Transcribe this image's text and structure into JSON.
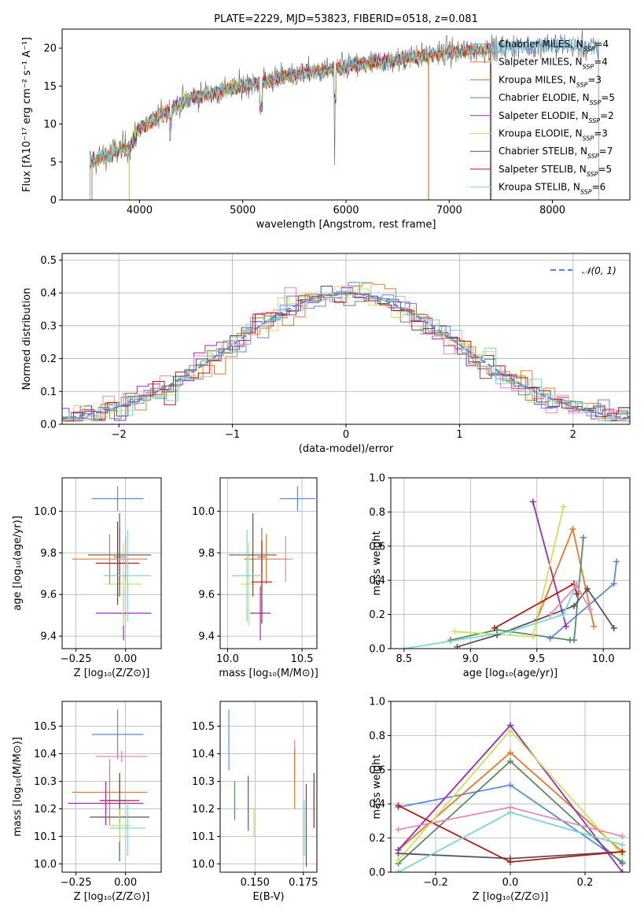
{
  "colors": {
    "chabrier_miles": "#5b8bd6",
    "salpeter_miles": "#e07b2a",
    "kroupa_miles": "#b8781e",
    "chabrier_elodie": "#5d8a66",
    "salpeter_elodie": "#9b2ab8",
    "kroupa_elodie": "#cbe35a",
    "chabrier_stelib": "#555555",
    "salpeter_stelib": "#b31a1a",
    "kroupa_stelib": "#7ed4d8",
    "pink": "#e58bb0",
    "normal": "#5b8bd6"
  },
  "chart_data": [
    {
      "type": "line",
      "title": "PLATE=2229, MJD=53823, FIBERID=0518, z=0.081",
      "xlabel": "wavelength [Angstrom, rest frame]",
      "ylabel": "Flux [fλ10⁻¹⁷ erg cm⁻² s⁻¹ A⁻¹]",
      "xlim": [
        3250,
        8750
      ],
      "ylim": [
        0,
        22.5
      ],
      "xticks": [
        "4000",
        "5000",
        "6000",
        "7000",
        "8000"
      ],
      "yticks": [
        "0",
        "5",
        "10",
        "15",
        "20"
      ],
      "legend": [
        "Chabrier MILES, N_SSP=4",
        "Salpeter MILES, N_SSP=4",
        "Kroupa MILES, N_SSP=3",
        "Chabrier ELODIE, N_SSP=5",
        "Salpeter ELODIE, N_SSP=2",
        "Kroupa ELODIE, N_SSP=3",
        "Chabrier STELIB, N_SSP=7",
        "Salpeter STELIB, N_SSP=5",
        "Kroupa STELIB, N_SSP=6"
      ],
      "legend_position": "right",
      "continuum": {
        "x": [
          3500,
          3700,
          3900,
          4000,
          4200,
          4500,
          5000,
          5500,
          6000,
          6500,
          7000,
          7500,
          8000,
          8400
        ],
        "y": [
          5.0,
          6.0,
          7.0,
          9.5,
          11.0,
          13.5,
          15.0,
          16.5,
          17.5,
          18.5,
          19.5,
          20.0,
          20.5,
          20.0
        ]
      }
    },
    {
      "type": "bar",
      "xlabel": "(data-model)/error",
      "ylabel": "Normed distribution",
      "xlim": [
        -2.5,
        2.5
      ],
      "ylim": [
        0,
        0.52
      ],
      "xticks": [
        "−2",
        "−1",
        "0",
        "1",
        "2"
      ],
      "yticks": [
        "0.0",
        "0.1",
        "0.2",
        "0.3",
        "0.4",
        "0.5"
      ],
      "legend": [
        "𝒩(0, 1)"
      ],
      "legend_position": "top-right",
      "reference_curve": {
        "name": "𝒩(0, 1)",
        "mean": 0,
        "sigma": 1
      }
    },
    {
      "type": "scatter",
      "xlabel": "Z [log₁₀(Z/Z⊙)]",
      "ylabel": "age  [log₁₀(age/yr)]",
      "xlim": [
        -0.32,
        0.18
      ],
      "ylim": [
        9.34,
        10.16
      ],
      "xticks": [
        "−0.25",
        "0.00"
      ],
      "yticks": [
        "9.4",
        "9.6",
        "9.8",
        "10.0"
      ],
      "points": [
        {
          "series": "chabrier_miles",
          "x": -0.04,
          "y": 10.06,
          "xerr": 0.13,
          "yerr": 0.06
        },
        {
          "series": "salpeter_miles",
          "x": -0.08,
          "y": 9.77,
          "xerr": 0.19,
          "yerr": 0.12
        },
        {
          "series": "chabrier_elodie",
          "x": -0.03,
          "y": 9.78,
          "xerr": 0.03,
          "yerr": 0.14
        },
        {
          "series": "salpeter_elodie",
          "x": -0.01,
          "y": 9.51,
          "xerr": 0.14,
          "yerr": 0.13
        },
        {
          "series": "kroupa_elodie",
          "x": -0.01,
          "y": 9.65,
          "xerr": 0.09,
          "yerr": 0.2
        },
        {
          "series": "chabrier_stelib",
          "x": -0.03,
          "y": 9.79,
          "xerr": 0.16,
          "yerr": 0.2
        },
        {
          "series": "salpeter_stelib",
          "x": -0.04,
          "y": 9.75,
          "xerr": 0.11,
          "yerr": 0.2
        },
        {
          "series": "kroupa_stelib",
          "x": 0.01,
          "y": 9.69,
          "xerr": 0.12,
          "yerr": 0.22
        },
        {
          "series": "pink",
          "x": 0.0,
          "y": 9.77,
          "xerr": 0.04,
          "yerr": 0.11
        }
      ]
    },
    {
      "type": "scatter",
      "xlabel": "mass [log₁₀(M/M⊙)]",
      "ylabel": "",
      "xlim": [
        9.95,
        10.6
      ],
      "ylim": [
        9.34,
        10.16
      ],
      "xticks": [
        "10.0",
        "10.5"
      ],
      "yticks": [
        "9.4",
        "9.6",
        "9.8",
        "10.0"
      ],
      "points": [
        {
          "series": "chabrier_miles",
          "x": 10.47,
          "y": 10.06,
          "xerr": 0.12,
          "yerr": 0.06
        },
        {
          "series": "salpeter_miles",
          "x": 10.26,
          "y": 9.77,
          "xerr": 0.15,
          "yerr": 0.12
        },
        {
          "series": "pink",
          "x": 10.39,
          "y": 9.77,
          "xerr": 0.05,
          "yerr": 0.11
        },
        {
          "series": "chabrier_elodie",
          "x": 10.23,
          "y": 9.78,
          "xerr": 0.03,
          "yerr": 0.14
        },
        {
          "series": "salpeter_elodie",
          "x": 10.22,
          "y": 9.51,
          "xerr": 0.07,
          "yerr": 0.13
        },
        {
          "series": "kroupa_elodie",
          "x": 10.14,
          "y": 9.65,
          "xerr": 0.05,
          "yerr": 0.2
        },
        {
          "series": "chabrier_stelib",
          "x": 10.17,
          "y": 9.79,
          "xerr": 0.16,
          "yerr": 0.2
        },
        {
          "series": "salpeter_stelib",
          "x": 10.23,
          "y": 9.66,
          "xerr": 0.07,
          "yerr": 0.2
        },
        {
          "series": "kroupa_stelib",
          "x": 10.13,
          "y": 9.69,
          "xerr": 0.1,
          "yerr": 0.22
        }
      ]
    },
    {
      "type": "line",
      "xlabel": "age  [log₁₀(age/yr)]",
      "ylabel": "mass weight",
      "xlim": [
        8.4,
        10.2
      ],
      "ylim": [
        0,
        1.0
      ],
      "xticks": [
        "8.5",
        "9.0",
        "9.5",
        "10.0"
      ],
      "yticks": [
        "0.0",
        "0.2",
        "0.4",
        "0.6",
        "0.8",
        "1.0"
      ],
      "series": [
        {
          "color": "chabrier_miles",
          "x": [
            9.6,
            10.08,
            10.1
          ],
          "y": [
            0.06,
            0.38,
            0.51
          ]
        },
        {
          "color": "salpeter_miles",
          "x": [
            9.5,
            9.77,
            9.93
          ],
          "y": [
            0.17,
            0.7,
            0.13
          ]
        },
        {
          "color": "chabrier_elodie",
          "x": [
            8.85,
            9.2,
            9.75,
            9.78,
            9.85
          ],
          "y": [
            0.05,
            0.11,
            0.05,
            0.05,
            0.65
          ]
        },
        {
          "color": "salpeter_elodie",
          "x": [
            9.47,
            9.72
          ],
          "y": [
            0.86,
            0.13
          ]
        },
        {
          "color": "kroupa_elodie",
          "x": [
            8.88,
            9.47,
            9.7
          ],
          "y": [
            0.1,
            0.07,
            0.83
          ]
        },
        {
          "color": "chabrier_stelib",
          "x": [
            8.9,
            9.2,
            9.78,
            9.88,
            10.08
          ],
          "y": [
            0.01,
            0.08,
            0.25,
            0.35,
            0.12
          ]
        },
        {
          "color": "salpeter_stelib",
          "x": [
            9.18,
            9.78,
            9.8
          ],
          "y": [
            0.12,
            0.38,
            0.32
          ]
        },
        {
          "color": "kroupa_stelib",
          "x": [
            8.5,
            9.3,
            9.7,
            9.8
          ],
          "y": [
            0.0,
            0.1,
            0.2,
            0.38
          ]
        },
        {
          "color": "pink",
          "x": [
            9.6,
            9.8,
            9.9
          ],
          "y": [
            0.2,
            0.37,
            0.23
          ]
        }
      ]
    },
    {
      "type": "scatter",
      "xlabel": "Z [log₁₀(Z/Z⊙)]",
      "ylabel": "mass [log₁₀(M/M⊙)]",
      "xlim": [
        -0.32,
        0.18
      ],
      "ylim": [
        9.97,
        10.59
      ],
      "xticks": [
        "−0.25",
        "0.00"
      ],
      "yticks": [
        "10.0",
        "10.1",
        "10.2",
        "10.3",
        "10.4",
        "10.5"
      ],
      "points": [
        {
          "series": "chabrier_miles",
          "x": -0.04,
          "y": 10.47,
          "xerr": 0.13,
          "yerr": 0.09
        },
        {
          "series": "pink",
          "x": -0.02,
          "y": 10.39,
          "xerr": 0.13,
          "yerr": 0.02
        },
        {
          "series": "salpeter_miles",
          "x": -0.08,
          "y": 10.26,
          "xerr": 0.19,
          "yerr": 0.12
        },
        {
          "series": "chabrier_elodie",
          "x": -0.03,
          "y": 10.23,
          "xerr": 0.05,
          "yerr": 0.08
        },
        {
          "series": "salpeter_elodie",
          "x": -0.1,
          "y": 10.22,
          "xerr": 0.19,
          "yerr": 0.08
        },
        {
          "series": "salpeter_stelib",
          "x": -0.03,
          "y": 10.23,
          "xerr": 0.1,
          "yerr": 0.1
        },
        {
          "series": "chabrier_stelib",
          "x": -0.03,
          "y": 10.17,
          "xerr": 0.15,
          "yerr": 0.16
        },
        {
          "series": "kroupa_elodie",
          "x": -0.03,
          "y": 10.14,
          "xerr": 0.06,
          "yerr": 0.06
        },
        {
          "series": "kroupa_stelib",
          "x": 0.01,
          "y": 10.13,
          "xerr": 0.09,
          "yerr": 0.1
        }
      ]
    },
    {
      "type": "scatter",
      "xlabel": "E(B-V)",
      "ylabel": "",
      "xlim": [
        0.132,
        0.182
      ],
      "ylim": [
        9.97,
        10.59
      ],
      "xticks": [
        "0.150",
        "0.175"
      ],
      "yticks": [
        "10.0",
        "10.1",
        "10.2",
        "10.3",
        "10.4",
        "10.5"
      ],
      "points": [
        {
          "series": "chabrier_miles",
          "x": 0.1365,
          "y": 10.45,
          "xerr": 0,
          "yerr": 0.11
        },
        {
          "series": "chabrier_elodie",
          "x": 0.1395,
          "y": 10.23,
          "xerr": 0,
          "yerr": 0.07
        },
        {
          "series": "salpeter_elodie",
          "x": 0.1465,
          "y": 10.22,
          "xerr": 0,
          "yerr": 0.1
        },
        {
          "series": "kroupa_elodie",
          "x": 0.1495,
          "y": 10.15,
          "xerr": 0,
          "yerr": 0.05
        },
        {
          "series": "pink",
          "x": 0.1705,
          "y": 10.38,
          "xerr": 0,
          "yerr": 0.07
        },
        {
          "series": "salpeter_miles",
          "x": 0.1705,
          "y": 10.31,
          "xerr": 0,
          "yerr": 0.11
        },
        {
          "series": "kroupa_stelib",
          "x": 0.1755,
          "y": 10.13,
          "xerr": 0,
          "yerr": 0.1
        },
        {
          "series": "chabrier_stelib",
          "x": 0.1765,
          "y": 10.14,
          "xerr": 0,
          "yerr": 0.15
        },
        {
          "series": "salpeter_stelib",
          "x": 0.1805,
          "y": 10.23,
          "xerr": 0,
          "yerr": 0.1
        }
      ]
    },
    {
      "type": "line",
      "xlabel": "Z [log₁₀(Z/Z⊙)]",
      "ylabel": "mass weight",
      "xlim": [
        -0.32,
        0.32
      ],
      "ylim": [
        0,
        1.0
      ],
      "xticks": [
        "−0.2",
        "0.0",
        "0.2"
      ],
      "yticks": [
        "0.0",
        "0.2",
        "0.4",
        "0.6",
        "0.8",
        "1.0"
      ],
      "series": [
        {
          "color": "chabrier_miles",
          "x": [
            -0.3,
            0.0,
            0.3
          ],
          "y": [
            0.38,
            0.51,
            0.06
          ]
        },
        {
          "color": "salpeter_miles",
          "x": [
            -0.3,
            0.0,
            0.3
          ],
          "y": [
            0.13,
            0.7,
            0.12
          ]
        },
        {
          "color": "chabrier_elodie",
          "x": [
            -0.3,
            0.0,
            0.3
          ],
          "y": [
            0.05,
            0.65,
            0.05
          ]
        },
        {
          "color": "salpeter_elodie",
          "x": [
            -0.3,
            0.0,
            0.3
          ],
          "y": [
            0.13,
            0.86,
            0.0
          ]
        },
        {
          "color": "kroupa_elodie",
          "x": [
            -0.3,
            0.0,
            0.3
          ],
          "y": [
            0.07,
            0.83,
            0.1
          ]
        },
        {
          "color": "chabrier_stelib",
          "x": [
            -0.3,
            0.0,
            0.3
          ],
          "y": [
            0.11,
            0.08,
            0.12
          ]
        },
        {
          "color": "salpeter_stelib",
          "x": [
            -0.3,
            0.0,
            0.3
          ],
          "y": [
            0.39,
            0.06,
            0.12
          ]
        },
        {
          "color": "kroupa_stelib",
          "x": [
            -0.3,
            0.0,
            0.3
          ],
          "y": [
            0.0,
            0.35,
            0.16
          ]
        },
        {
          "color": "pink",
          "x": [
            -0.3,
            0.0,
            0.3
          ],
          "y": [
            0.25,
            0.38,
            0.21
          ]
        }
      ]
    }
  ]
}
